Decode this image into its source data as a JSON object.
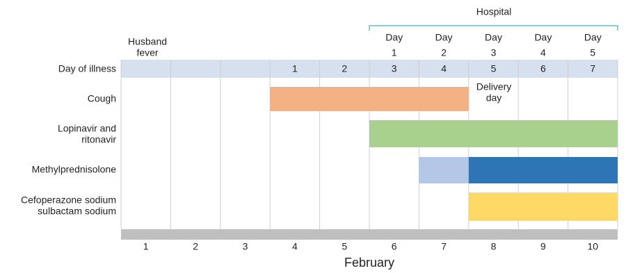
{
  "hospital": {
    "label": "Hospital",
    "days": [
      [
        "Day",
        "1"
      ],
      [
        "Day",
        "2"
      ],
      [
        "Day",
        "3"
      ],
      [
        "Day",
        "4"
      ],
      [
        "Day",
        "5"
      ]
    ]
  },
  "husband_fever": [
    "Husband",
    "fever"
  ],
  "illness_row": {
    "label": "Day of illness",
    "days": [
      "1",
      "2",
      "3",
      "4",
      "5",
      "6",
      "7"
    ]
  },
  "rows": [
    {
      "label": [
        "Cough"
      ]
    },
    {
      "label": [
        "Lopinavir and",
        "ritonavir"
      ]
    },
    {
      "label": [
        "Methylprednisolone"
      ]
    },
    {
      "label": [
        "Cefoperazone sodium",
        "sulbactam sodium"
      ]
    }
  ],
  "annotation": [
    "Delivery",
    "day"
  ],
  "dates": [
    "1",
    "2",
    "3",
    "4",
    "5",
    "6",
    "7",
    "8",
    "9",
    "10"
  ],
  "month": "February"
}
